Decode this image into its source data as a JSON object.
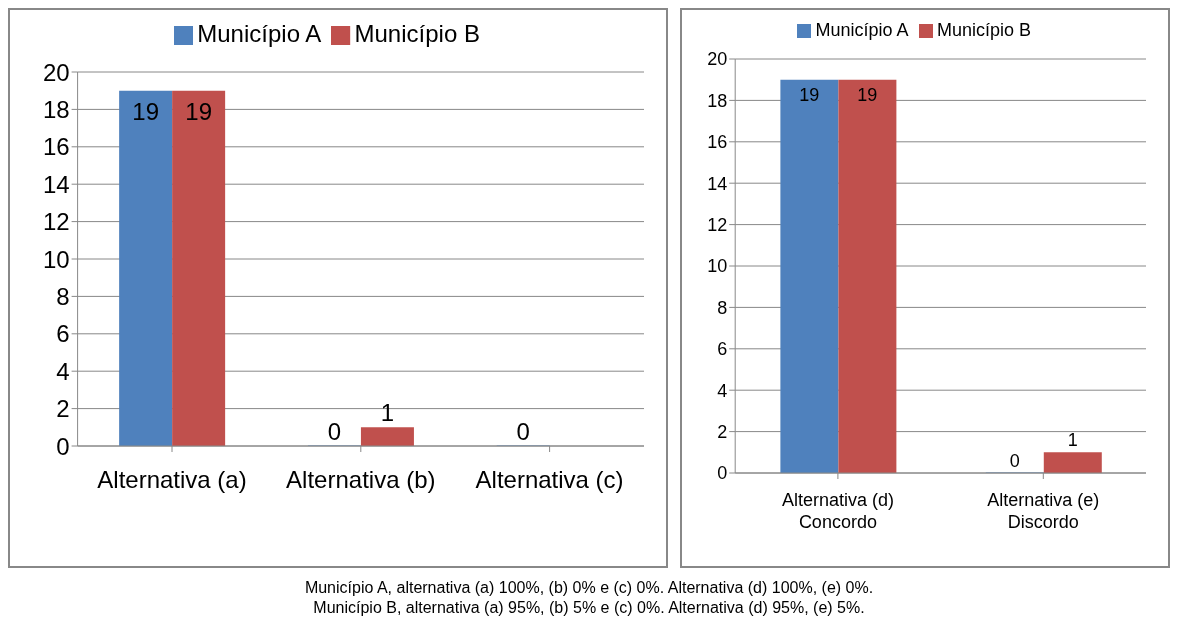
{
  "chart_data": [
    {
      "type": "bar",
      "categories": [
        "Alternativa (a)",
        "Alternativa (b)",
        "Alternativa (c)"
      ],
      "series": [
        {
          "name": "Município A",
          "color": "#4f81bd",
          "values": [
            19,
            0,
            0
          ],
          "value_labels": [
            "19",
            "0",
            "0"
          ]
        },
        {
          "name": "Município B",
          "color": "#c0504d",
          "values": [
            19,
            1,
            null
          ],
          "value_labels": [
            "19",
            "1",
            null
          ]
        }
      ],
      "ylim": [
        0,
        20
      ],
      "yticks": [
        0,
        2,
        4,
        6,
        8,
        10,
        12,
        14,
        16,
        18,
        20
      ],
      "grid": "y",
      "legend": "top"
    },
    {
      "type": "bar",
      "categories": [
        "Alternativa (d)\nConcordo",
        "Alternativa (e)\nDiscordo"
      ],
      "series": [
        {
          "name": "Município A",
          "color": "#4f81bd",
          "values": [
            19,
            0
          ]
        },
        {
          "name": "Município B",
          "color": "#c0504d",
          "values": [
            19,
            1
          ]
        }
      ],
      "ylim": [
        0,
        20
      ],
      "yticks": [
        0,
        2,
        4,
        6,
        8,
        10,
        12,
        14,
        16,
        18,
        20
      ],
      "grid": "y",
      "legend": "top",
      "data_labels": true,
      "annotations": [
        "Município A, alternativa (a) 100%, (b) 0% e (c) 0%. Alternativa (d) 100%, (e) 0%.",
        "Município B, alternativa (a) 95%, (b) 5% e (c) 0%. Alternativa (d) 95%, (e) 5%."
      ]
    }
  ]
}
